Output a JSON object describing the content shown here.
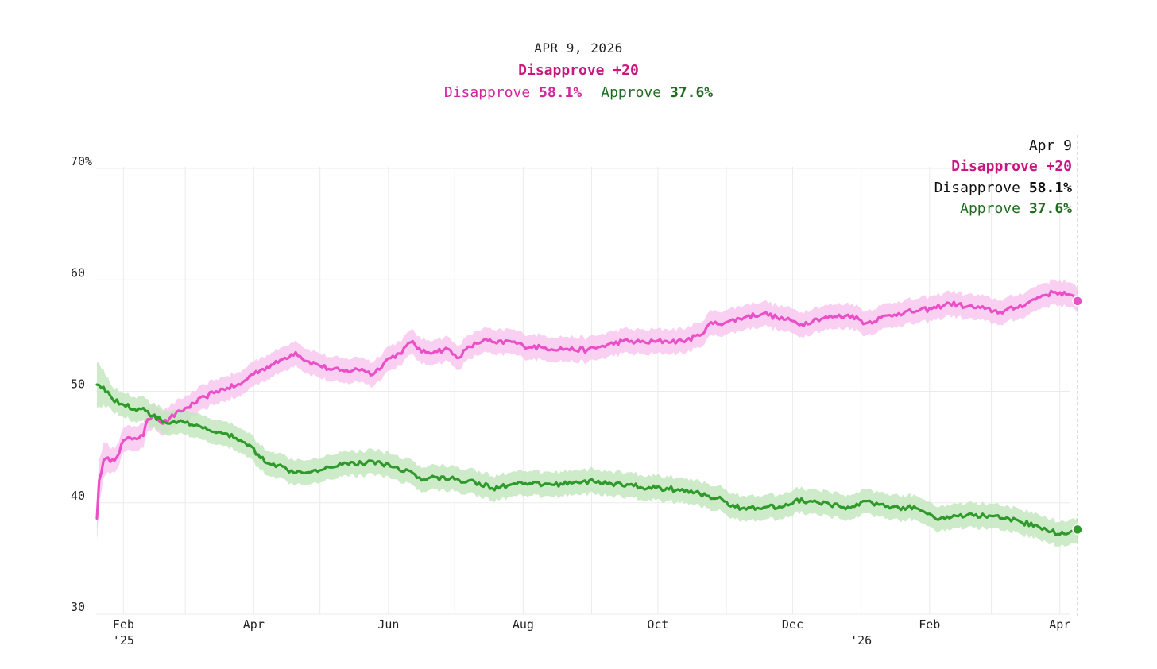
{
  "header": {
    "date": "APR 9, 2026",
    "net_label": "Disapprove +20",
    "disapprove_label": "Disapprove",
    "disapprove_value": "58.1%",
    "approve_label": "Approve",
    "approve_value": "37.6%"
  },
  "tooltip": {
    "date": "Apr 9",
    "net_label": "Disapprove +20",
    "disapprove_label": "Disapprove",
    "disapprove_value": "58.1%",
    "approve_label": "Approve",
    "approve_value": "37.6%"
  },
  "colors": {
    "disapprove": "#ea4fc8",
    "disapprove_band": "#f8c8ee",
    "approve": "#2e9a2a",
    "approve_band": "#c4e6c0",
    "grid": "#ebebeb",
    "accent_text": "#c8177f",
    "approve_text": "#1f6b1f"
  },
  "chart_data": {
    "type": "line",
    "title": "Disapprove +20",
    "xlabel": "",
    "ylabel": "",
    "ylim": [
      30,
      70
    ],
    "grid": true,
    "legend": "top-right",
    "x_domain": [
      "2025-01-20",
      "2026-04-09"
    ],
    "y_ticks": [
      {
        "value": 70,
        "label": "70%"
      },
      {
        "value": 60,
        "label": "60"
      },
      {
        "value": 50,
        "label": "50"
      },
      {
        "value": 40,
        "label": "40"
      },
      {
        "value": 30,
        "label": "30"
      }
    ],
    "x_ticks": [
      {
        "date": "2025-02-01",
        "label": "Feb",
        "year": "'25"
      },
      {
        "date": "2025-04-01",
        "label": "Apr"
      },
      {
        "date": "2025-06-01",
        "label": "Jun"
      },
      {
        "date": "2025-08-01",
        "label": "Aug"
      },
      {
        "date": "2025-10-01",
        "label": "Oct"
      },
      {
        "date": "2025-12-01",
        "label": "Dec"
      },
      {
        "date": "2026-01-01",
        "label": "",
        "year": "'26"
      },
      {
        "date": "2026-02-01",
        "label": "Feb"
      },
      {
        "date": "2026-04-01",
        "label": "Apr"
      }
    ],
    "band_halfwidth": 1.1,
    "series": [
      {
        "name": "Disapprove",
        "final_value": 58.1,
        "points": [
          [
            "2025-01-20",
            38.6
          ],
          [
            "2025-01-21",
            42.0
          ],
          [
            "2025-01-23",
            43.8
          ],
          [
            "2025-01-27",
            43.9
          ],
          [
            "2025-01-29",
            44.1
          ],
          [
            "2025-02-01",
            45.6
          ],
          [
            "2025-02-06",
            45.8
          ],
          [
            "2025-02-10",
            46.0
          ],
          [
            "2025-02-12",
            47.5
          ],
          [
            "2025-02-15",
            47.9
          ],
          [
            "2025-02-19",
            47.1
          ],
          [
            "2025-02-22",
            47.6
          ],
          [
            "2025-02-27",
            48.2
          ],
          [
            "2025-03-05",
            48.9
          ],
          [
            "2025-03-10",
            49.5
          ],
          [
            "2025-03-15",
            50.0
          ],
          [
            "2025-03-20",
            50.3
          ],
          [
            "2025-03-26",
            50.6
          ],
          [
            "2025-03-31",
            51.5
          ],
          [
            "2025-04-05",
            52.0
          ],
          [
            "2025-04-10",
            52.4
          ],
          [
            "2025-04-15",
            53.0
          ],
          [
            "2025-04-20",
            53.5
          ],
          [
            "2025-04-25",
            52.7
          ],
          [
            "2025-04-30",
            52.4
          ],
          [
            "2025-05-05",
            52.0
          ],
          [
            "2025-05-12",
            51.8
          ],
          [
            "2025-05-20",
            52.0
          ],
          [
            "2025-05-25",
            51.5
          ],
          [
            "2025-05-31",
            52.8
          ],
          [
            "2025-06-06",
            53.4
          ],
          [
            "2025-06-12",
            54.5
          ],
          [
            "2025-06-16",
            53.5
          ],
          [
            "2025-06-22",
            53.6
          ],
          [
            "2025-06-28",
            53.8
          ],
          [
            "2025-07-02",
            53.0
          ],
          [
            "2025-07-08",
            54.0
          ],
          [
            "2025-07-14",
            54.6
          ],
          [
            "2025-07-20",
            54.3
          ],
          [
            "2025-07-26",
            54.5
          ],
          [
            "2025-08-01",
            54.1
          ],
          [
            "2025-08-10",
            53.9
          ],
          [
            "2025-08-20",
            53.8
          ],
          [
            "2025-08-30",
            53.7
          ],
          [
            "2025-09-05",
            54.0
          ],
          [
            "2025-09-15",
            54.5
          ],
          [
            "2025-09-25",
            54.4
          ],
          [
            "2025-10-05",
            54.5
          ],
          [
            "2025-10-12",
            54.5
          ],
          [
            "2025-10-20",
            55.0
          ],
          [
            "2025-10-24",
            56.0
          ],
          [
            "2025-11-01",
            56.2
          ],
          [
            "2025-11-10",
            56.7
          ],
          [
            "2025-11-18",
            57.0
          ],
          [
            "2025-11-24",
            56.6
          ],
          [
            "2025-12-01",
            56.3
          ],
          [
            "2025-12-05",
            56.0
          ],
          [
            "2025-12-12",
            56.5
          ],
          [
            "2025-12-20",
            56.7
          ],
          [
            "2025-12-28",
            56.8
          ],
          [
            "2026-01-03",
            56.1
          ],
          [
            "2026-01-10",
            56.6
          ],
          [
            "2026-01-18",
            57.0
          ],
          [
            "2026-01-26",
            57.2
          ],
          [
            "2026-02-02",
            57.4
          ],
          [
            "2026-02-10",
            57.9
          ],
          [
            "2026-02-18",
            57.6
          ],
          [
            "2026-02-26",
            57.4
          ],
          [
            "2026-03-05",
            57.1
          ],
          [
            "2026-03-12",
            57.5
          ],
          [
            "2026-03-18",
            58.0
          ],
          [
            "2026-03-24",
            58.6
          ],
          [
            "2026-03-30",
            58.9
          ],
          [
            "2026-04-05",
            58.7
          ],
          [
            "2026-04-09",
            58.1
          ]
        ]
      },
      {
        "name": "Approve",
        "final_value": 37.6,
        "points": [
          [
            "2025-01-20",
            50.6
          ],
          [
            "2025-01-23",
            50.4
          ],
          [
            "2025-01-27",
            49.3
          ],
          [
            "2025-02-01",
            48.8
          ],
          [
            "2025-02-06",
            48.4
          ],
          [
            "2025-02-10",
            48.5
          ],
          [
            "2025-02-14",
            47.8
          ],
          [
            "2025-02-20",
            47.2
          ],
          [
            "2025-02-26",
            47.3
          ],
          [
            "2025-03-05",
            46.9
          ],
          [
            "2025-03-12",
            46.5
          ],
          [
            "2025-03-18",
            46.2
          ],
          [
            "2025-03-24",
            45.8
          ],
          [
            "2025-03-30",
            45.2
          ],
          [
            "2025-04-04",
            44.0
          ],
          [
            "2025-04-10",
            43.5
          ],
          [
            "2025-04-16",
            43.0
          ],
          [
            "2025-04-22",
            42.8
          ],
          [
            "2025-04-28",
            42.9
          ],
          [
            "2025-05-05",
            43.2
          ],
          [
            "2025-05-12",
            43.6
          ],
          [
            "2025-05-20",
            43.5
          ],
          [
            "2025-05-27",
            43.7
          ],
          [
            "2025-06-03",
            43.2
          ],
          [
            "2025-06-10",
            42.9
          ],
          [
            "2025-06-16",
            42.0
          ],
          [
            "2025-06-22",
            42.3
          ],
          [
            "2025-07-01",
            42.1
          ],
          [
            "2025-07-10",
            41.9
          ],
          [
            "2025-07-18",
            41.3
          ],
          [
            "2025-07-26",
            41.6
          ],
          [
            "2025-08-05",
            41.7
          ],
          [
            "2025-08-15",
            41.6
          ],
          [
            "2025-08-25",
            41.9
          ],
          [
            "2025-09-02",
            41.9
          ],
          [
            "2025-09-10",
            41.7
          ],
          [
            "2025-09-20",
            41.5
          ],
          [
            "2025-09-30",
            41.3
          ],
          [
            "2025-10-10",
            41.2
          ],
          [
            "2025-10-20",
            40.8
          ],
          [
            "2025-10-28",
            40.4
          ],
          [
            "2025-11-04",
            39.8
          ],
          [
            "2025-11-10",
            39.4
          ],
          [
            "2025-11-18",
            39.6
          ],
          [
            "2025-11-26",
            39.6
          ],
          [
            "2025-12-02",
            40.2
          ],
          [
            "2025-12-10",
            40.1
          ],
          [
            "2025-12-18",
            39.8
          ],
          [
            "2025-12-24",
            39.6
          ],
          [
            "2025-12-30",
            39.9
          ],
          [
            "2026-01-06",
            40.0
          ],
          [
            "2026-01-14",
            39.5
          ],
          [
            "2026-01-22",
            39.6
          ],
          [
            "2026-01-28",
            39.3
          ],
          [
            "2026-02-03",
            38.7
          ],
          [
            "2026-02-10",
            38.6
          ],
          [
            "2026-02-18",
            38.9
          ],
          [
            "2026-02-26",
            38.8
          ],
          [
            "2026-03-06",
            38.6
          ],
          [
            "2026-03-14",
            38.3
          ],
          [
            "2026-03-22",
            37.9
          ],
          [
            "2026-03-28",
            37.4
          ],
          [
            "2026-04-03",
            37.2
          ],
          [
            "2026-04-09",
            37.6
          ]
        ]
      }
    ]
  }
}
